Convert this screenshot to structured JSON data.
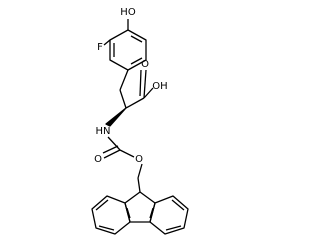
{
  "atoms": {
    "hydroxyl": "HO",
    "fluorine": "F",
    "acid_carbonyl": "O",
    "acid_hydroxyl": "OH",
    "amine": "HN",
    "carbamate_carbonyl": "O",
    "ester_oxygen": "O"
  }
}
